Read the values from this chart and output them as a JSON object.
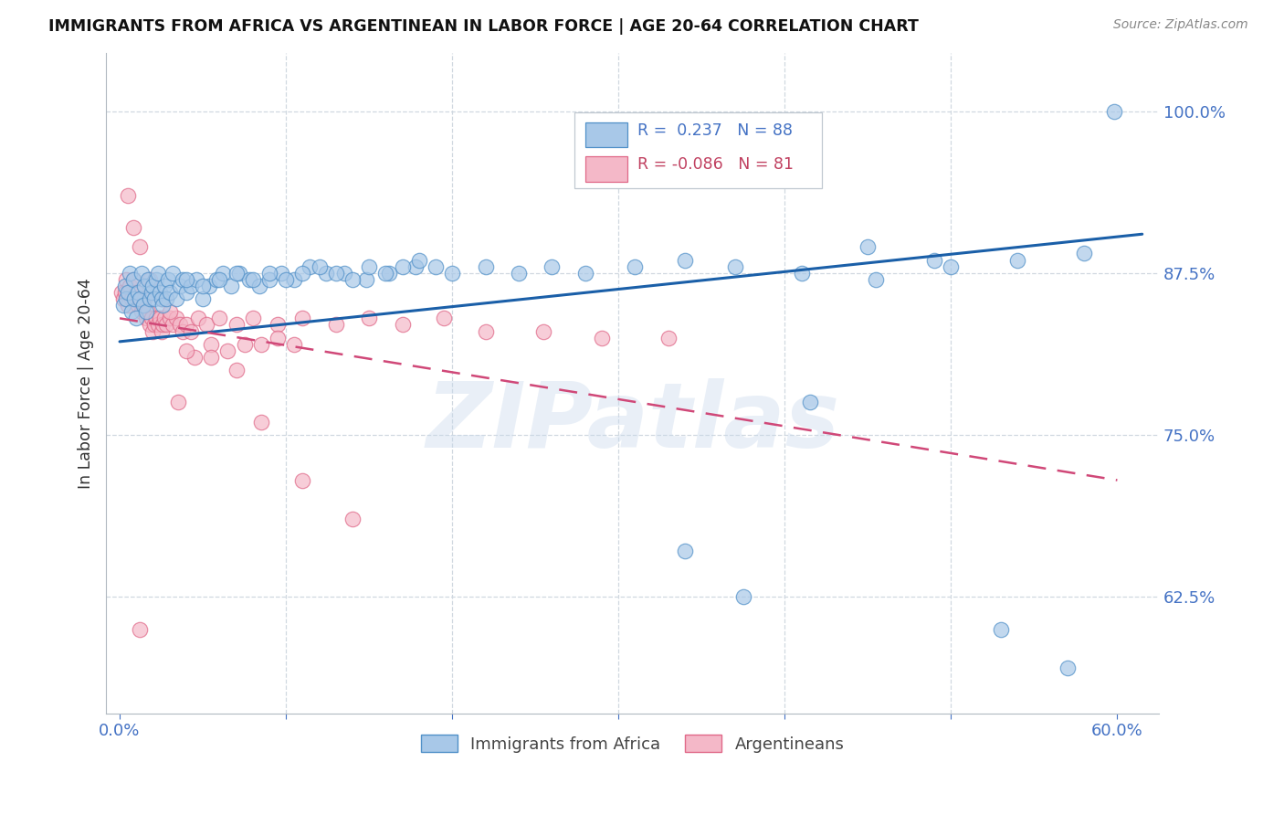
{
  "title": "IMMIGRANTS FROM AFRICA VS ARGENTINEAN IN LABOR FORCE | AGE 20-64 CORRELATION CHART",
  "source": "Source: ZipAtlas.com",
  "ylabel": "In Labor Force | Age 20-64",
  "xtick_labels": [
    "0.0%",
    "",
    "",
    "",
    "",
    "",
    "60.0%"
  ],
  "ytick_labels": [
    "62.5%",
    "75.0%",
    "87.5%",
    "100.0%"
  ],
  "xlim": [
    -0.008,
    0.625
  ],
  "ylim": [
    0.535,
    1.045
  ],
  "blue_R": 0.237,
  "blue_N": 88,
  "pink_R": -0.086,
  "pink_N": 81,
  "blue_fill": "#a8c8e8",
  "pink_fill": "#f4b8c8",
  "blue_edge": "#5090c8",
  "pink_edge": "#e06888",
  "blue_line_color": "#1a5fa8",
  "pink_line_color": "#d04878",
  "legend_label_blue": "Immigrants from Africa",
  "legend_label_pink": "Argentineans",
  "watermark": "ZIPatlas",
  "blue_trend_x0": 0.0,
  "blue_trend_x1": 0.615,
  "blue_trend_y0": 0.822,
  "blue_trend_y1": 0.905,
  "pink_trend_x0": 0.0,
  "pink_trend_x1": 0.6,
  "pink_trend_y0": 0.84,
  "pink_trend_y1": 0.715
}
